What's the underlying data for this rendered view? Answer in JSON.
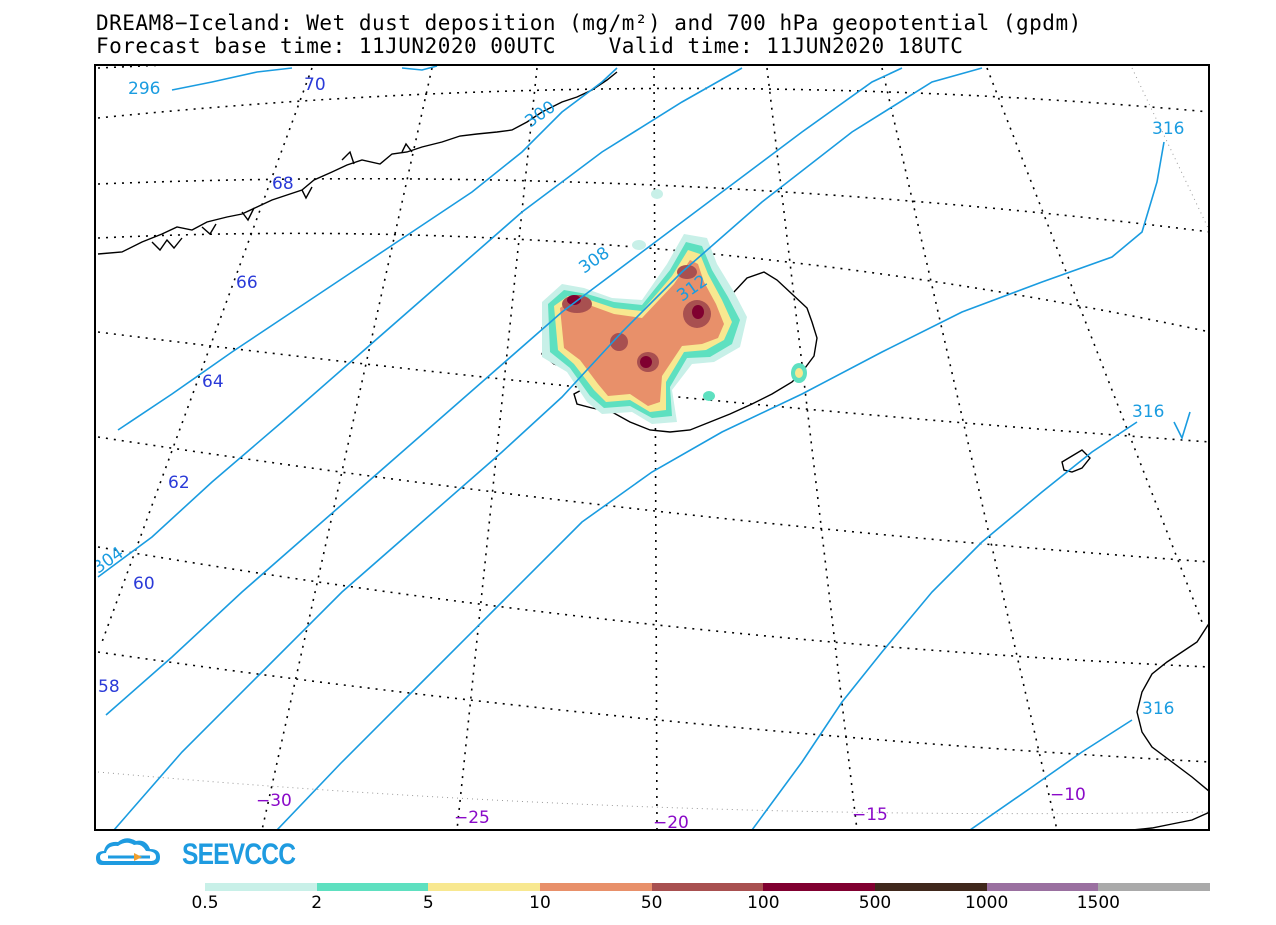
{
  "title_line1": "DREAM8−Iceland: Wet dust deposition (mg/m²) and 700 hPa geopotential (gpdm)",
  "title_line2": "Forecast base time: 11JUN2020 00UTC    Valid time: 11JUN2020 18UTC",
  "logo_text": "SEEVCCC",
  "colors": {
    "contour": "#1a9ce0",
    "lat_label": "#2a3ad8",
    "lon_label": "#8a0ac8",
    "coast": "#000000",
    "graticule": "#000000"
  },
  "latitude_labels": [
    "70",
    "68",
    "66",
    "64",
    "62",
    "60",
    "58"
  ],
  "longitude_labels": [
    "−30",
    "−25",
    "−20",
    "−15",
    "−10"
  ],
  "contour_labels": [
    "296",
    "300",
    "304",
    "308",
    "312",
    "316",
    "316",
    "316"
  ],
  "legend": {
    "colors": [
      "#c8f0e8",
      "#5ee0c0",
      "#f8e890",
      "#e8906a",
      "#a85050",
      "#800030",
      "#40281c",
      "#9a70a0",
      "#aaaaaa"
    ],
    "labels": [
      "0.5",
      "2",
      "5",
      "10",
      "50",
      "100",
      "500",
      "1000",
      "1500"
    ]
  }
}
